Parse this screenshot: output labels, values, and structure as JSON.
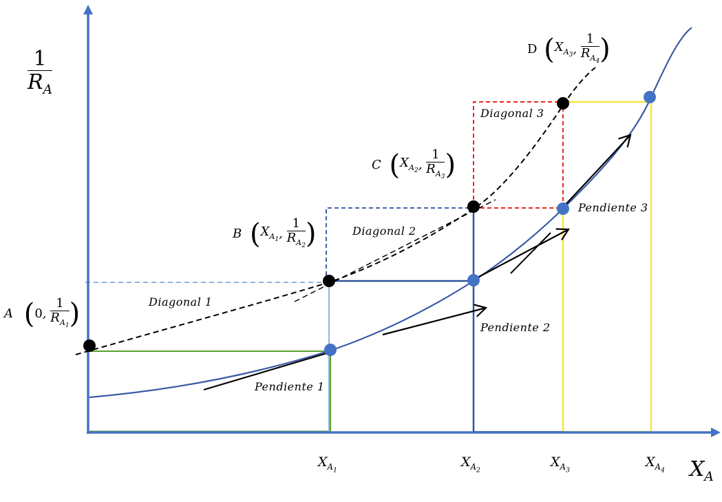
{
  "axes": {
    "y_numerator": "1",
    "y_denominator": "R",
    "y_denominator_sub": "A",
    "x_label": "X",
    "x_label_sub": "A",
    "ticks": [
      {
        "base": "X",
        "sub": "A",
        "subsub": "1"
      },
      {
        "base": "X",
        "sub": "A",
        "subsub": "2"
      },
      {
        "base": "X",
        "sub": "A",
        "subsub": "3"
      },
      {
        "base": "X",
        "sub": "A",
        "subsub": "4"
      }
    ]
  },
  "points": {
    "A": {
      "letter": "A",
      "coord_x": "0",
      "den_sub": "A",
      "den_subsub": "1"
    },
    "B": {
      "letter": "B",
      "coord_x_sub": "A",
      "coord_x_subsub": "1",
      "den_sub": "A",
      "den_subsub": "2"
    },
    "C": {
      "letter": "C",
      "coord_x_sub": "A",
      "coord_x_subsub": "2",
      "den_sub": "A",
      "den_subsub": "3"
    },
    "D": {
      "letter": "D",
      "coord_x_sub": "A",
      "coord_x_subsub": "3",
      "den_sub": "A",
      "den_subsub": "4"
    }
  },
  "labels": {
    "diagonal_1": "Diagonal 1",
    "diagonal_2": "Diagonal 2",
    "diagonal_3": "Diagonal 3",
    "pendiente_1": "Pendiente 1",
    "pendiente_2": "Pendiente 2",
    "pendiente_3": "Pendiente 3"
  },
  "common": {
    "x": "X",
    "one": "1",
    "r": "R",
    "comma": ","
  },
  "colors": {
    "axis": "#4472c4",
    "curve": "#3a5aa6",
    "green_box": "#5aa02c",
    "blue_box": "#2f5597",
    "light_blue_line": "#8eb4e3",
    "navy_dashed": "#2e4a9e",
    "red_dashed": "#e8281e",
    "yellow_box": "#f5e63c",
    "point_blue": "#4472c4",
    "point_black": "#000000"
  }
}
